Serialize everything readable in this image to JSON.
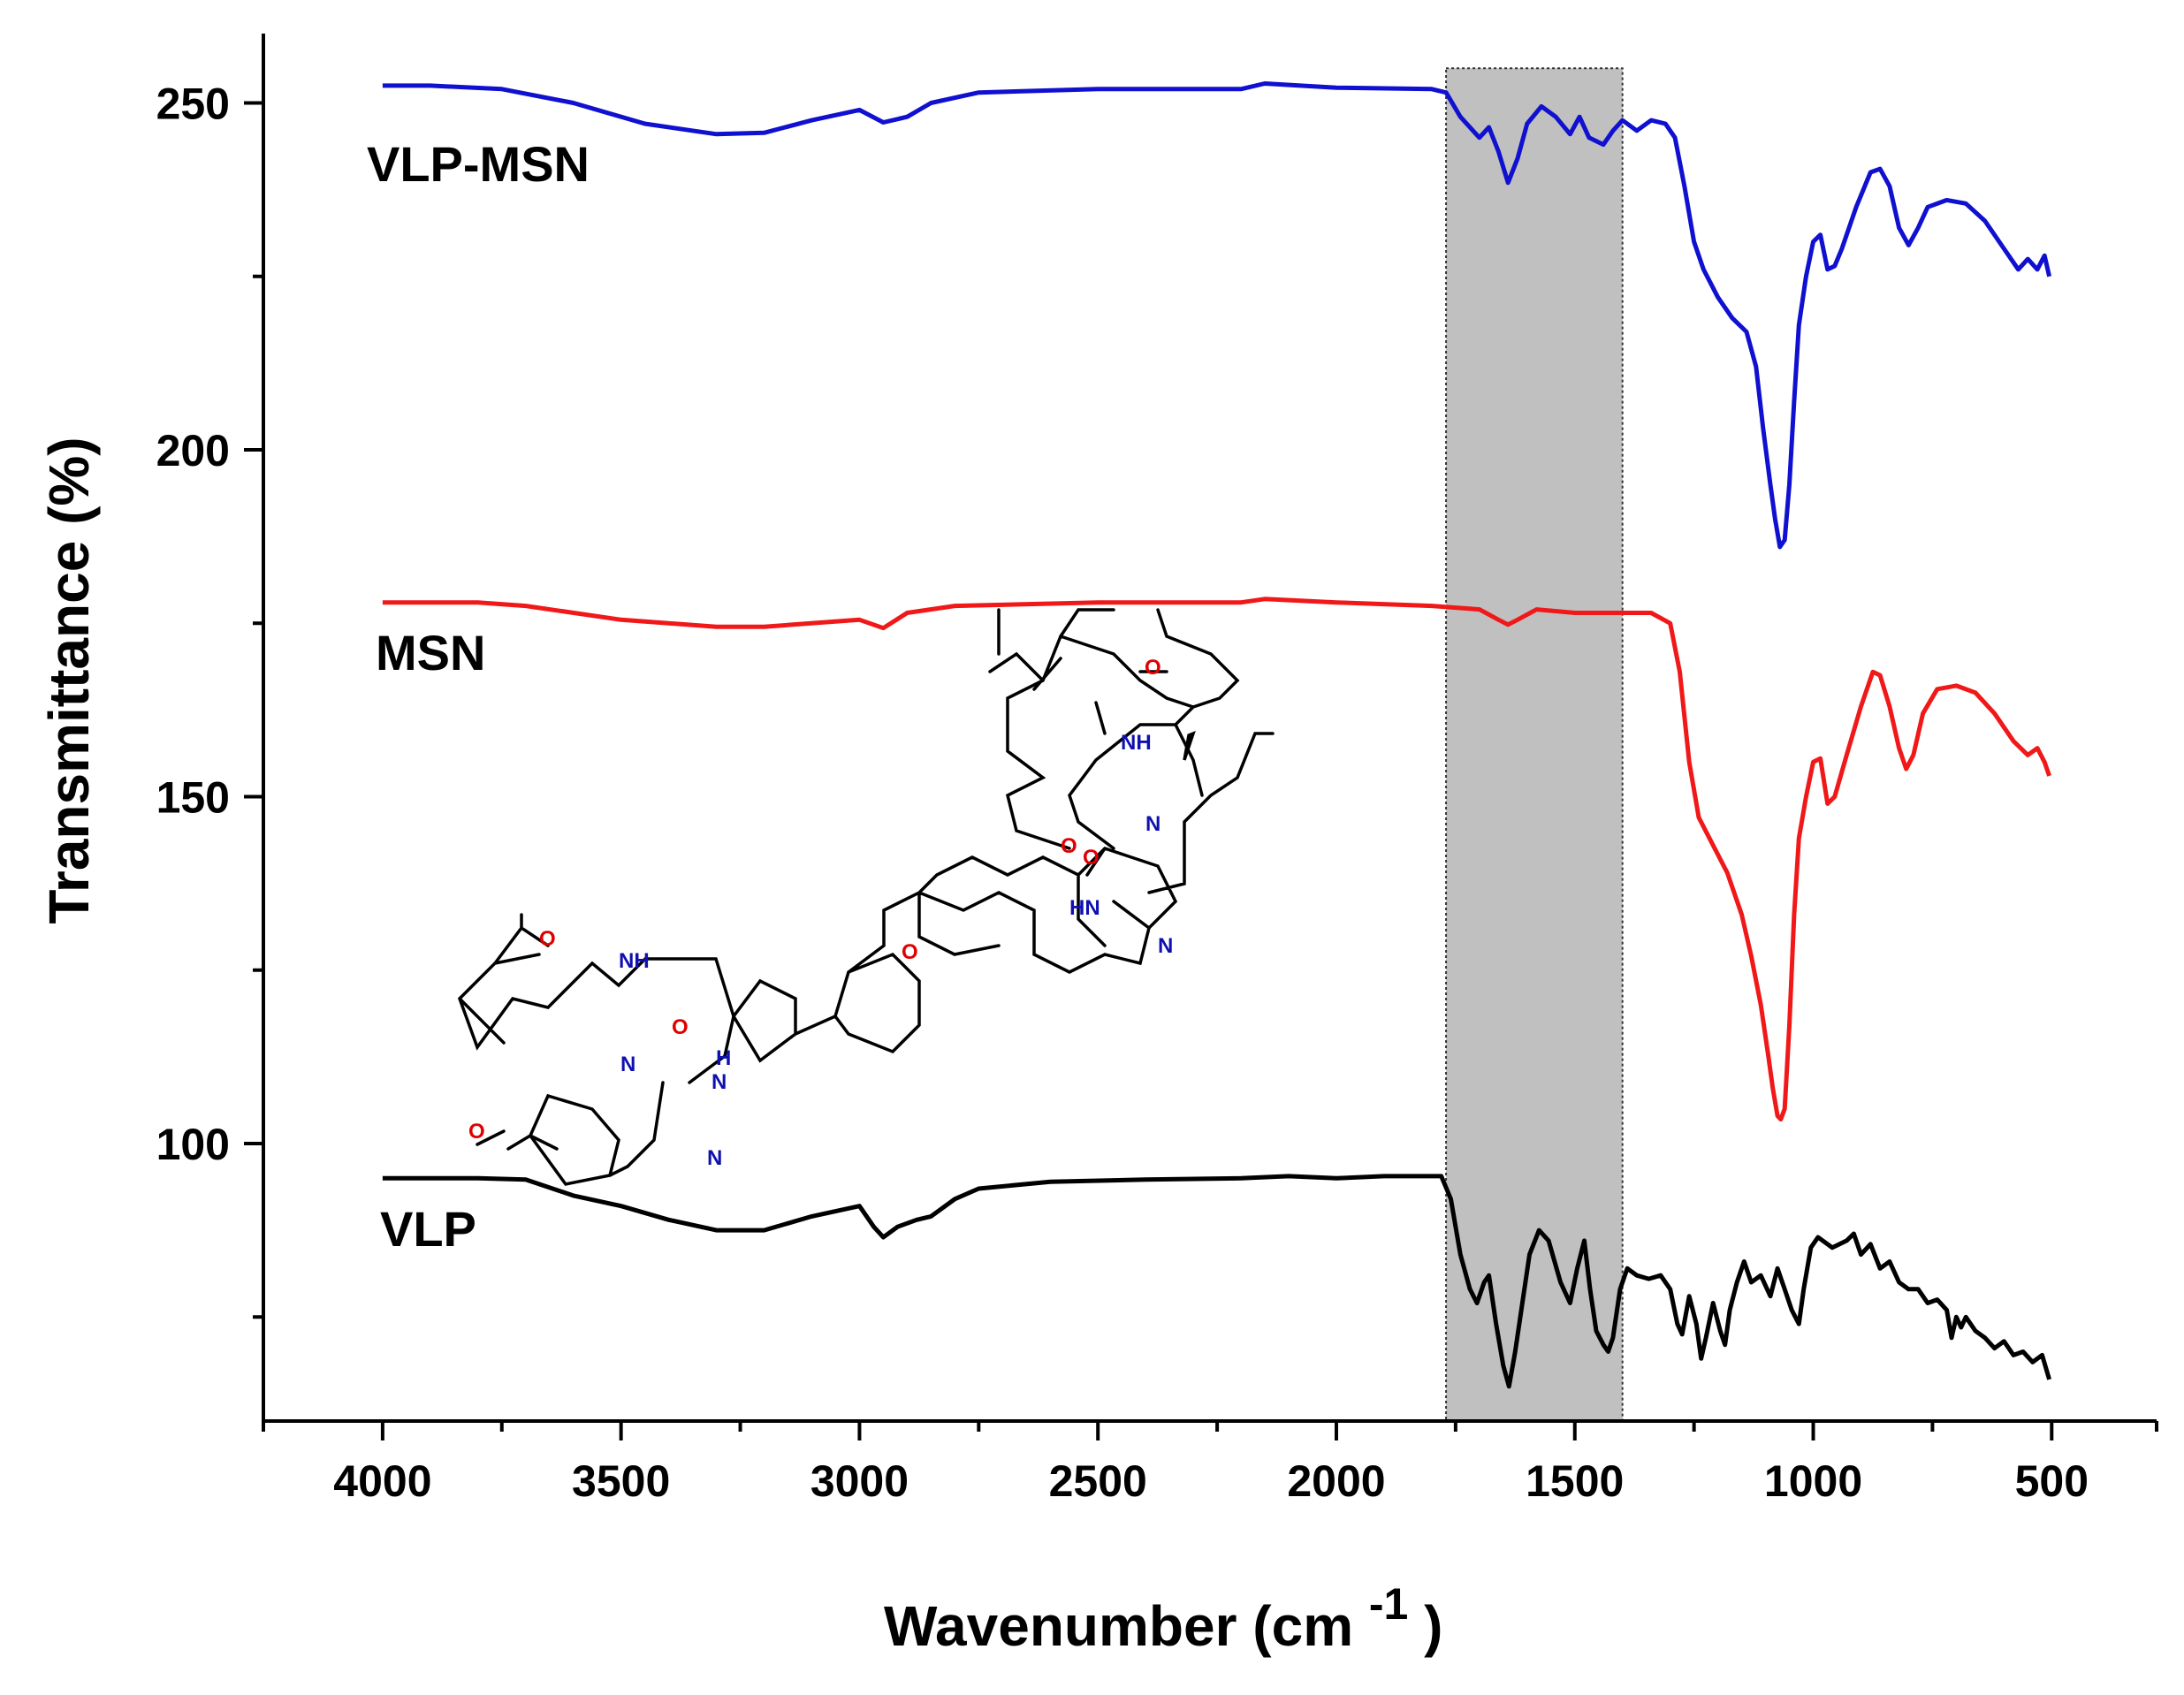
{
  "chart_data": {
    "type": "line",
    "xlabel": "Wavenumber (cm",
    "xlabel_superscript": "-1",
    "xlabel_close": ")",
    "ylabel": "Transmittance (%)",
    "xlim": [
      4250,
      280
    ],
    "ylim": [
      60,
      260
    ],
    "xticks": [
      4000,
      3500,
      3000,
      2500,
      2000,
      1500,
      1000,
      500
    ],
    "yticks": [
      100,
      150,
      200,
      250
    ],
    "highlight_band": [
      1770,
      1400
    ],
    "series": [
      {
        "name": "VLP-MSN",
        "color": "#1010d0",
        "points": [
          [
            4000,
            252.5
          ],
          [
            3900,
            252.5
          ],
          [
            3750,
            252
          ],
          [
            3600,
            250
          ],
          [
            3450,
            247
          ],
          [
            3300,
            245.5
          ],
          [
            3200,
            245.7
          ],
          [
            3100,
            247.5
          ],
          [
            3000,
            249
          ],
          [
            2950,
            247.2
          ],
          [
            2900,
            248
          ],
          [
            2850,
            250
          ],
          [
            2750,
            251.5
          ],
          [
            2500,
            252
          ],
          [
            2200,
            252
          ],
          [
            2150,
            252.8
          ],
          [
            2000,
            252.2
          ],
          [
            1800,
            252
          ],
          [
            1770,
            251.5
          ],
          [
            1740,
            248
          ],
          [
            1700,
            245
          ],
          [
            1680,
            246.5
          ],
          [
            1660,
            243
          ],
          [
            1640,
            238.5
          ],
          [
            1620,
            242
          ],
          [
            1600,
            247
          ],
          [
            1570,
            249.5
          ],
          [
            1540,
            248
          ],
          [
            1510,
            245.5
          ],
          [
            1490,
            248
          ],
          [
            1470,
            245
          ],
          [
            1440,
            244
          ],
          [
            1420,
            246
          ],
          [
            1400,
            247.5
          ],
          [
            1370,
            246
          ],
          [
            1340,
            247.5
          ],
          [
            1310,
            247
          ],
          [
            1290,
            245
          ],
          [
            1270,
            238
          ],
          [
            1250,
            230
          ],
          [
            1230,
            226
          ],
          [
            1200,
            222
          ],
          [
            1170,
            219
          ],
          [
            1140,
            217
          ],
          [
            1120,
            212
          ],
          [
            1105,
            203
          ],
          [
            1090,
            195
          ],
          [
            1080,
            190
          ],
          [
            1070,
            186
          ],
          [
            1060,
            187
          ],
          [
            1050,
            195
          ],
          [
            1040,
            207
          ],
          [
            1030,
            218
          ],
          [
            1015,
            225
          ],
          [
            1000,
            230
          ],
          [
            985,
            231
          ],
          [
            970,
            226
          ],
          [
            955,
            226.5
          ],
          [
            940,
            229
          ],
          [
            910,
            235
          ],
          [
            880,
            240
          ],
          [
            860,
            240.5
          ],
          [
            840,
            238
          ],
          [
            820,
            232
          ],
          [
            800,
            229.5
          ],
          [
            780,
            232
          ],
          [
            760,
            235
          ],
          [
            720,
            236
          ],
          [
            680,
            235.5
          ],
          [
            640,
            233
          ],
          [
            600,
            229
          ],
          [
            570,
            226
          ],
          [
            550,
            227.5
          ],
          [
            530,
            226
          ],
          [
            515,
            228
          ],
          [
            505,
            225
          ]
        ]
      },
      {
        "name": "MSN",
        "color": "#f01818",
        "points": [
          [
            4000,
            178
          ],
          [
            3800,
            178
          ],
          [
            3700,
            177.5
          ],
          [
            3500,
            175.5
          ],
          [
            3300,
            174.5
          ],
          [
            3200,
            174.5
          ],
          [
            3000,
            175.5
          ],
          [
            2950,
            174.3
          ],
          [
            2900,
            176.5
          ],
          [
            2800,
            177.5
          ],
          [
            2500,
            178
          ],
          [
            2200,
            178
          ],
          [
            2150,
            178.5
          ],
          [
            2000,
            178
          ],
          [
            1800,
            177.5
          ],
          [
            1700,
            177
          ],
          [
            1660,
            175.5
          ],
          [
            1640,
            174.8
          ],
          [
            1620,
            175.5
          ],
          [
            1580,
            177
          ],
          [
            1500,
            176.5
          ],
          [
            1400,
            176.5
          ],
          [
            1340,
            176.5
          ],
          [
            1300,
            175
          ],
          [
            1280,
            168
          ],
          [
            1260,
            155
          ],
          [
            1240,
            147
          ],
          [
            1210,
            143
          ],
          [
            1180,
            139
          ],
          [
            1150,
            133
          ],
          [
            1130,
            127
          ],
          [
            1110,
            120
          ],
          [
            1095,
            113
          ],
          [
            1085,
            108
          ],
          [
            1075,
            104
          ],
          [
            1068,
            103.5
          ],
          [
            1060,
            105
          ],
          [
            1050,
            117
          ],
          [
            1040,
            133
          ],
          [
            1030,
            144
          ],
          [
            1015,
            150
          ],
          [
            1000,
            155
          ],
          [
            985,
            155.5
          ],
          [
            970,
            149
          ],
          [
            955,
            150
          ],
          [
            930,
            156
          ],
          [
            900,
            163
          ],
          [
            875,
            168
          ],
          [
            860,
            167.5
          ],
          [
            840,
            163
          ],
          [
            820,
            157
          ],
          [
            805,
            154
          ],
          [
            790,
            156
          ],
          [
            770,
            162
          ],
          [
            740,
            165.5
          ],
          [
            700,
            166
          ],
          [
            660,
            165
          ],
          [
            620,
            162
          ],
          [
            580,
            158
          ],
          [
            550,
            156
          ],
          [
            530,
            157
          ],
          [
            515,
            155
          ],
          [
            505,
            153
          ]
        ]
      },
      {
        "name": "VLP",
        "color": "#000000",
        "points": [
          [
            4000,
            95
          ],
          [
            3800,
            95
          ],
          [
            3700,
            94.8
          ],
          [
            3600,
            92.5
          ],
          [
            3500,
            91
          ],
          [
            3400,
            89
          ],
          [
            3300,
            87.5
          ],
          [
            3200,
            87.5
          ],
          [
            3100,
            89.5
          ],
          [
            3000,
            91
          ],
          [
            2970,
            88
          ],
          [
            2950,
            86.5
          ],
          [
            2920,
            88
          ],
          [
            2880,
            89
          ],
          [
            2850,
            89.5
          ],
          [
            2800,
            92
          ],
          [
            2750,
            93.5
          ],
          [
            2600,
            94.5
          ],
          [
            2400,
            94.8
          ],
          [
            2200,
            95
          ],
          [
            2100,
            95.3
          ],
          [
            2000,
            95
          ],
          [
            1900,
            95.3
          ],
          [
            1780,
            95.3
          ],
          [
            1760,
            92
          ],
          [
            1740,
            84
          ],
          [
            1720,
            79
          ],
          [
            1705,
            77
          ],
          [
            1690,
            80
          ],
          [
            1680,
            81
          ],
          [
            1665,
            74
          ],
          [
            1650,
            68
          ],
          [
            1638,
            65
          ],
          [
            1625,
            70
          ],
          [
            1610,
            77
          ],
          [
            1595,
            84
          ],
          [
            1575,
            87.5
          ],
          [
            1555,
            86
          ],
          [
            1530,
            80
          ],
          [
            1510,
            77
          ],
          [
            1495,
            82
          ],
          [
            1480,
            86
          ],
          [
            1468,
            79
          ],
          [
            1455,
            73
          ],
          [
            1440,
            71
          ],
          [
            1430,
            70
          ],
          [
            1420,
            72
          ],
          [
            1405,
            79
          ],
          [
            1390,
            82
          ],
          [
            1370,
            81
          ],
          [
            1345,
            80.5
          ],
          [
            1320,
            81
          ],
          [
            1300,
            79
          ],
          [
            1285,
            74
          ],
          [
            1275,
            72.5
          ],
          [
            1260,
            78
          ],
          [
            1245,
            74
          ],
          [
            1235,
            69
          ],
          [
            1225,
            72
          ],
          [
            1210,
            77
          ],
          [
            1195,
            73
          ],
          [
            1185,
            71
          ],
          [
            1175,
            76
          ],
          [
            1160,
            80
          ],
          [
            1145,
            83
          ],
          [
            1130,
            80
          ],
          [
            1110,
            81
          ],
          [
            1090,
            78
          ],
          [
            1075,
            82
          ],
          [
            1060,
            79
          ],
          [
            1045,
            76
          ],
          [
            1030,
            74
          ],
          [
            1020,
            79
          ],
          [
            1005,
            85
          ],
          [
            990,
            86.5
          ],
          [
            960,
            85
          ],
          [
            930,
            86
          ],
          [
            915,
            87
          ],
          [
            900,
            84
          ],
          [
            880,
            85.5
          ],
          [
            860,
            82
          ],
          [
            840,
            83
          ],
          [
            820,
            80
          ],
          [
            800,
            79
          ],
          [
            780,
            79
          ],
          [
            760,
            77
          ],
          [
            740,
            77.5
          ],
          [
            720,
            76
          ],
          [
            710,
            72
          ],
          [
            700,
            75
          ],
          [
            690,
            73.5
          ],
          [
            680,
            75
          ],
          [
            660,
            73
          ],
          [
            640,
            72
          ],
          [
            620,
            70.5
          ],
          [
            600,
            71.5
          ],
          [
            580,
            69.5
          ],
          [
            560,
            70
          ],
          [
            540,
            68.5
          ],
          [
            520,
            69.5
          ],
          [
            505,
            66
          ]
        ]
      }
    ],
    "molecule_atoms": {
      "o1": "O",
      "o2": "O",
      "nh1": "NH",
      "o3": "O",
      "n1": "N",
      "o4": "O",
      "o5": "O",
      "nh2": "NH",
      "o6": "O",
      "n2": "N",
      "o7": "O",
      "hn1": "HN",
      "n3": "N",
      "h1": "H",
      "n4": "N",
      "n5": "N"
    }
  }
}
